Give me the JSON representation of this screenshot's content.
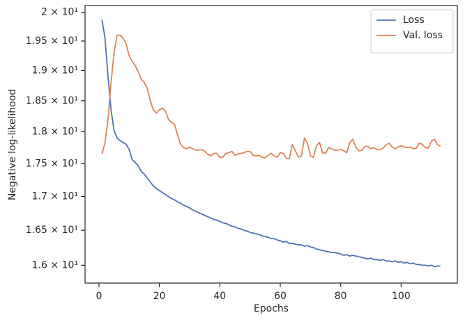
{
  "chart_data": {
    "type": "line",
    "xlabel": "Epochs",
    "ylabel": "Negative log-likelihood",
    "yscale": "log",
    "grid": false,
    "legend": "upper right",
    "xlim": [
      -4.6,
      118.6
    ],
    "xticks": [
      0,
      20,
      40,
      60,
      80,
      100
    ],
    "ylim": [
      15.75,
      20.12
    ],
    "yticks": [
      {
        "value": 16,
        "label": "1.6 × 10¹"
      },
      {
        "value": 16.5,
        "label": "1.65 × 10¹"
      },
      {
        "value": 17,
        "label": "1.7 × 10¹"
      },
      {
        "value": 17.5,
        "label": "1.75 × 10¹"
      },
      {
        "value": 18,
        "label": "1.8 × 10¹"
      },
      {
        "value": 18.5,
        "label": "1.85 × 10¹"
      },
      {
        "value": 19,
        "label": "1.9 × 10¹"
      },
      {
        "value": 19.5,
        "label": "1.95 × 10¹"
      },
      {
        "value": 20,
        "label": "2 × 10¹"
      }
    ],
    "x": [
      1,
      2,
      3,
      4,
      5,
      6,
      7,
      8,
      9,
      10,
      11,
      12,
      13,
      14,
      15,
      16,
      17,
      18,
      19,
      20,
      21,
      22,
      23,
      24,
      25,
      26,
      27,
      28,
      29,
      30,
      31,
      32,
      33,
      34,
      35,
      36,
      37,
      38,
      39,
      40,
      41,
      42,
      43,
      44,
      45,
      46,
      47,
      48,
      49,
      50,
      51,
      52,
      53,
      54,
      55,
      56,
      57,
      58,
      59,
      60,
      61,
      62,
      63,
      64,
      65,
      66,
      67,
      68,
      69,
      70,
      71,
      72,
      73,
      74,
      75,
      76,
      77,
      78,
      79,
      80,
      81,
      82,
      83,
      84,
      85,
      86,
      87,
      88,
      89,
      90,
      91,
      92,
      93,
      94,
      95,
      96,
      97,
      98,
      99,
      100,
      101,
      102,
      103,
      104,
      105,
      106,
      107,
      108,
      109,
      110,
      111,
      112,
      113
    ],
    "series": [
      {
        "name": "Loss",
        "color": "#4c72b0",
        "values": [
          19.87,
          19.55,
          18.9,
          18.35,
          18.02,
          17.9,
          17.86,
          17.83,
          17.8,
          17.72,
          17.56,
          17.52,
          17.47,
          17.38,
          17.34,
          17.28,
          17.22,
          17.16,
          17.12,
          17.09,
          17.06,
          17.03,
          17.0,
          16.97,
          16.95,
          16.92,
          16.9,
          16.87,
          16.85,
          16.83,
          16.8,
          16.78,
          16.76,
          16.74,
          16.72,
          16.7,
          16.68,
          16.66,
          16.65,
          16.63,
          16.61,
          16.6,
          16.58,
          16.56,
          16.55,
          16.53,
          16.52,
          16.5,
          16.49,
          16.47,
          16.46,
          16.45,
          16.44,
          16.42,
          16.41,
          16.4,
          16.38,
          16.38,
          16.36,
          16.35,
          16.33,
          16.34,
          16.31,
          16.31,
          16.3,
          16.29,
          16.29,
          16.27,
          16.28,
          16.26,
          16.25,
          16.23,
          16.22,
          16.21,
          16.2,
          16.19,
          16.18,
          16.18,
          16.17,
          16.16,
          16.14,
          16.15,
          16.13,
          16.14,
          16.13,
          16.12,
          16.11,
          16.1,
          16.09,
          16.1,
          16.08,
          16.08,
          16.07,
          16.08,
          16.06,
          16.06,
          16.05,
          16.06,
          16.04,
          16.05,
          16.03,
          16.04,
          16.02,
          16.03,
          16.01,
          16.01,
          16.0,
          16.0,
          15.99,
          16.0,
          15.98,
          15.99,
          15.99
        ]
      },
      {
        "name": "Val. loss",
        "color": "#dd8452",
        "values": [
          17.65,
          17.82,
          18.2,
          18.8,
          19.3,
          19.6,
          19.6,
          19.55,
          19.45,
          19.25,
          19.15,
          19.08,
          18.98,
          18.85,
          18.8,
          18.7,
          18.5,
          18.35,
          18.3,
          18.35,
          18.38,
          18.33,
          18.2,
          18.15,
          18.12,
          17.95,
          17.8,
          17.75,
          17.73,
          17.76,
          17.73,
          17.71,
          17.71,
          17.72,
          17.69,
          17.65,
          17.62,
          17.66,
          17.66,
          17.6,
          17.6,
          17.66,
          17.67,
          17.69,
          17.63,
          17.65,
          17.66,
          17.67,
          17.69,
          17.69,
          17.63,
          17.62,
          17.63,
          17.6,
          17.59,
          17.63,
          17.66,
          17.62,
          17.6,
          17.67,
          17.66,
          17.58,
          17.58,
          17.8,
          17.7,
          17.6,
          17.62,
          17.9,
          17.82,
          17.62,
          17.6,
          17.78,
          17.83,
          17.67,
          17.66,
          17.75,
          17.73,
          17.71,
          17.71,
          17.72,
          17.7,
          17.67,
          17.83,
          17.88,
          17.76,
          17.7,
          17.71,
          17.77,
          17.77,
          17.73,
          17.75,
          17.72,
          17.72,
          17.74,
          17.79,
          17.82,
          17.76,
          17.73,
          17.76,
          17.78,
          17.76,
          17.75,
          17.76,
          17.73,
          17.74,
          17.82,
          17.8,
          17.75,
          17.74,
          17.85,
          17.88,
          17.8,
          17.77
        ]
      }
    ]
  }
}
